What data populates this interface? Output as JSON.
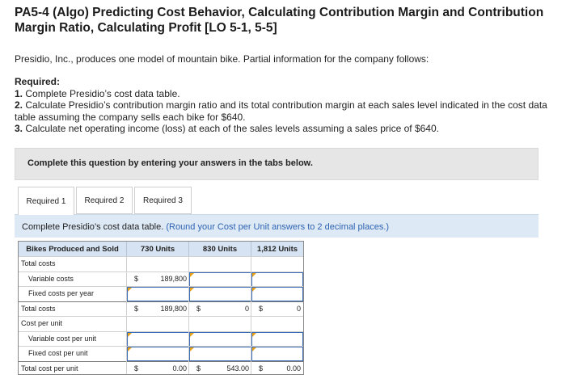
{
  "title": "PA5-4 (Algo) Predicting Cost Behavior, Calculating Contribution Margin and Contribution Margin Ratio, Calculating Profit [LO 5-1, 5-5]",
  "intro": "Presidio, Inc., produces one model of mountain bike. Partial information for the company follows:",
  "required": {
    "heading": "Required:",
    "items": [
      {
        "num": "1.",
        "text": "Complete Presidio’s cost data table."
      },
      {
        "num": "2.",
        "text": "Calculate Presidio’s contribution margin ratio and its total contribution margin at each sales level indicated in the cost data table assuming the company sells each bike for $640."
      },
      {
        "num": "3.",
        "text": "Calculate net operating income (loss) at each of the sales levels assuming a sales price of $640."
      }
    ]
  },
  "banner": "Complete this question by entering your answers in the tabs below.",
  "tabs": [
    "Required 1",
    "Required 2",
    "Required 3"
  ],
  "instruction": {
    "main": "Complete Presidio’s cost data table.",
    "highlight": "(Round your Cost per Unit answers to 2 decimal places.)"
  },
  "table": {
    "headers": [
      "Bikes Produced and Sold",
      "730 Units",
      "830 Units",
      "1,812 Units"
    ],
    "rows": {
      "total_costs_label": "Total costs",
      "variable_costs_label": "Variable costs",
      "variable_costs_c1": "189,800",
      "fixed_costs_label": "Fixed costs per year",
      "total_costs_sum_label": "Total costs",
      "total_costs_c1": "189,800",
      "total_costs_c2": "0",
      "total_costs_c3": "0",
      "cost_per_unit_label": "Cost per unit",
      "var_per_unit_label": "Variable cost per unit",
      "fixed_per_unit_label": "Fixed cost per unit",
      "total_per_unit_label": "Total cost per unit",
      "total_per_unit_c1": "0.00",
      "total_per_unit_c2": "543.00",
      "total_per_unit_c3": "0.00",
      "currency": "$"
    }
  },
  "colors": {
    "header_bg": "#d6e3f2",
    "instruction_bg": "#dde9f5",
    "highlight_text": "#2f63b3",
    "input_border": "#3a6db5",
    "input_corner": "#e8a21a"
  }
}
